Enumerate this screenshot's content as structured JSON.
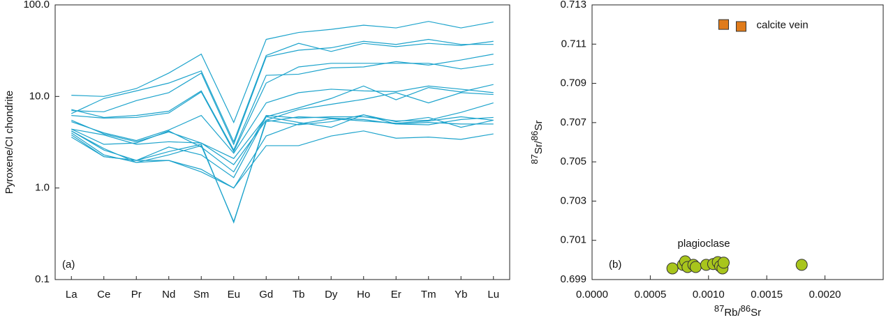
{
  "chart_data": [
    {
      "type": "line",
      "ylabel": "Pyroxene/CI chondrite",
      "annotation": "(a)",
      "log": true,
      "categories": [
        "La",
        "Ce",
        "Pr",
        "Nd",
        "Sm",
        "Eu",
        "Gd",
        "Tb",
        "Dy",
        "Ho",
        "Er",
        "Tm",
        "Yb",
        "Lu"
      ],
      "ylim": [
        0.1,
        100
      ],
      "yticks": [
        0.1,
        {
          "value": 1,
          "label": "1.0"
        },
        {
          "value": 10,
          "label": "10.0"
        },
        {
          "value": 100,
          "label": "100.0"
        }
      ],
      "series": [
        {
          "color": "#1ca3cc",
          "values": [
            10.3,
            10,
            12.2,
            18,
            29,
            5.2,
            42,
            50,
            54,
            60,
            56,
            66,
            56,
            65
          ]
        },
        {
          "color": "#1ca3cc",
          "values": [
            6.5,
            9.5,
            11.5,
            14,
            19,
            3.2,
            28,
            38,
            31,
            38,
            35,
            38,
            36,
            40
          ]
        },
        {
          "color": "#1ca3cc",
          "values": [
            7,
            6.8,
            9,
            11,
            18,
            3.0,
            27,
            32,
            34,
            40,
            37,
            42,
            37,
            37
          ]
        },
        {
          "color": "#1ca3cc",
          "values": [
            7.2,
            5.9,
            6.2,
            6.9,
            11.5,
            2.6,
            17,
            17.5,
            20.5,
            21,
            24,
            22,
            25,
            29
          ]
        },
        {
          "color": "#1ca3cc",
          "values": [
            6.2,
            5.8,
            5.9,
            6.6,
            11.2,
            2.5,
            14,
            21,
            23,
            23,
            23,
            23,
            20,
            22.5
          ]
        },
        {
          "color": "#1ca3cc",
          "values": [
            5.3,
            4.0,
            3.3,
            4.3,
            6.2,
            2.4,
            8.5,
            11,
            12,
            11.5,
            11.3,
            13,
            12,
            11
          ]
        },
        {
          "color": "#1ca3cc",
          "values": [
            5.5,
            3.9,
            3.2,
            4.1,
            3.1,
            2.1,
            6.0,
            7.5,
            9.5,
            13,
            9.2,
            12.5,
            11.2,
            13.5
          ]
        },
        {
          "color": "#1ca3cc",
          "values": [
            4.4,
            3.8,
            3.0,
            3.2,
            3.1,
            1.8,
            5.5,
            7.2,
            8.2,
            9.3,
            11,
            8.5,
            11,
            10.5
          ]
        },
        {
          "color": "#1ca3cc",
          "values": [
            4.4,
            3.0,
            3.1,
            4.2,
            2.8,
            1.5,
            6.2,
            5.8,
            6.0,
            6.0,
            5.4,
            5.5,
            6.7,
            8.5
          ]
        },
        {
          "color": "#1ca3cc",
          "values": [
            4.2,
            2.6,
            2.0,
            2.8,
            2.3,
            1.3,
            6.0,
            5.2,
            4.6,
            6.3,
            5.3,
            5.9,
            4.6,
            5.5
          ]
        },
        {
          "color": "#1ca3cc",
          "values": [
            4.2,
            2.7,
            1.9,
            2.3,
            2.9,
            0.43,
            5.3,
            6.0,
            5.8,
            5.6,
            5.0,
            4.9,
            5.6,
            5.9
          ]
        },
        {
          "color": "#1ca3cc",
          "values": [
            3.8,
            2.2,
            2.0,
            2.5,
            3.0,
            0.42,
            5.5,
            4.9,
            5.3,
            6.3,
            5.0,
            5.2,
            5.0,
            5.0
          ]
        },
        {
          "color": "#1ca3cc",
          "values": [
            4.0,
            2.3,
            1.9,
            2.0,
            1.6,
            1.0,
            3.7,
            5.0,
            5.7,
            5.4,
            5.1,
            5.4,
            6.0,
            5.5
          ]
        },
        {
          "color": "#1ca3cc",
          "values": [
            3.6,
            2.2,
            2.0,
            2.0,
            1.5,
            1.0,
            2.9,
            2.9,
            3.7,
            4.2,
            3.5,
            3.6,
            3.4,
            3.9
          ]
        }
      ]
    },
    {
      "type": "scatter",
      "annotation": "(b)",
      "xlabel": [
        "87",
        "Rb/",
        "86",
        "Sr"
      ],
      "ylabel": [
        "87",
        "Sr/",
        "86",
        "Sr"
      ],
      "xlim": [
        0,
        0.0025
      ],
      "xticks": [
        {
          "value": 0,
          "label": "0.0000"
        },
        0.0005,
        {
          "value": 0.001,
          "label": "0.0010"
        },
        0.0015,
        {
          "value": 0.002,
          "label": "0.0020"
        }
      ],
      "ylim": [
        0.699,
        0.713
      ],
      "yticks": [
        0.699,
        0.701,
        0.703,
        0.705,
        0.707,
        0.709,
        0.711,
        0.713
      ],
      "series": [
        {
          "name": "calcite vein",
          "color": "#e07b1a",
          "marker": "square",
          "x": [
            0.00113,
            0.00128
          ],
          "values": [
            0.712,
            0.7119
          ]
        },
        {
          "name": "plagioclase",
          "color": "#a8c51c",
          "marker": "circle",
          "x": [
            0.00069,
            0.00078,
            0.0008,
            0.00082,
            0.00087,
            0.00089,
            0.00098,
            0.00104,
            0.00108,
            0.0011,
            0.00112,
            0.00113,
            0.0018
          ],
          "values": [
            0.69957,
            0.69975,
            0.69993,
            0.69964,
            0.69975,
            0.69964,
            0.69975,
            0.69979,
            0.69989,
            0.69968,
            0.69957,
            0.69986,
            0.69975
          ]
        }
      ]
    }
  ]
}
